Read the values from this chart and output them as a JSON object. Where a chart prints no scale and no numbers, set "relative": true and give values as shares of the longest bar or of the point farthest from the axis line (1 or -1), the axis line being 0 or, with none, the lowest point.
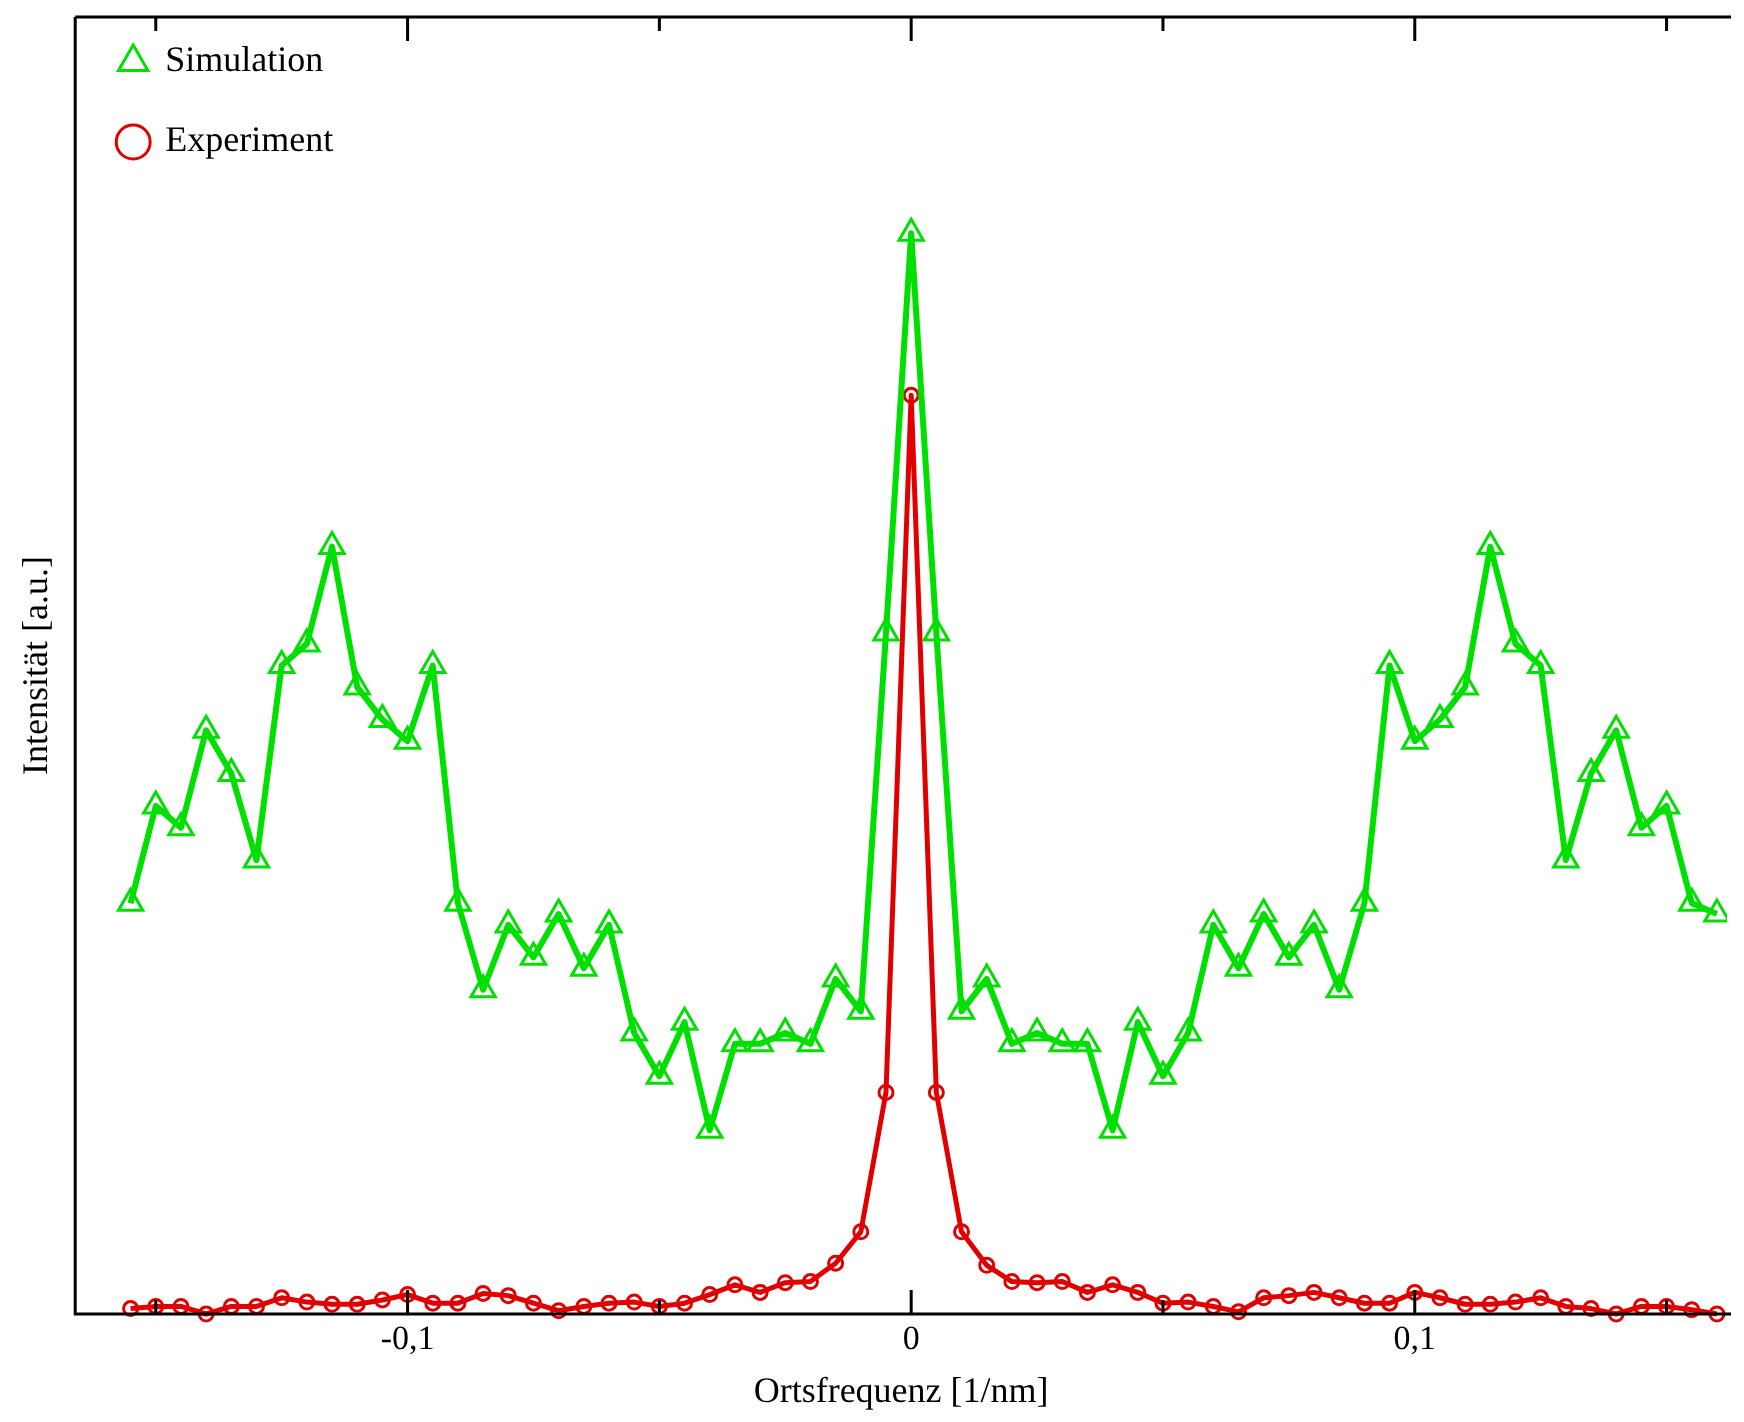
{
  "chart_data": {
    "type": "line",
    "xlabel": "Ortsfrequenz [1/nm]",
    "ylabel": "Intensität [a.u.]",
    "relative": true,
    "x": [
      -0.155,
      -0.15,
      -0.145,
      -0.14,
      -0.135,
      -0.13,
      -0.125,
      -0.12,
      -0.115,
      -0.11,
      -0.105,
      -0.1,
      -0.095,
      -0.09,
      -0.085,
      -0.08,
      -0.075,
      -0.07,
      -0.065,
      -0.06,
      -0.055,
      -0.05,
      -0.045,
      -0.04,
      -0.035,
      -0.03,
      -0.025,
      -0.02,
      -0.015,
      -0.01,
      -0.005,
      0,
      0.005,
      0.01,
      0.015,
      0.02,
      0.025,
      0.03,
      0.035,
      0.04,
      0.045,
      0.05,
      0.055,
      0.06,
      0.065,
      0.07,
      0.075,
      0.08,
      0.085,
      0.09,
      0.095,
      0.1,
      0.105,
      0.11,
      0.115,
      0.12,
      0.125,
      0.13,
      0.135,
      0.14,
      0.145,
      0.15,
      0.155,
      0.16
    ],
    "xlim": [
      -0.166,
      0.162
    ],
    "xticks": [
      {
        "value": -0.15,
        "label": null
      },
      {
        "value": -0.1,
        "label": "-0,1"
      },
      {
        "value": -0.05,
        "label": null
      },
      {
        "value": 0,
        "label": "0"
      },
      {
        "value": 0.05,
        "label": null
      },
      {
        "value": 0.1,
        "label": "0,1"
      },
      {
        "value": 0.15,
        "label": null
      }
    ],
    "legend": "top left",
    "series": [
      {
        "name": "Simulation",
        "color": "#00e000",
        "marker": "triangle",
        "values": [
          0.38,
          0.47,
          0.45,
          0.54,
          0.5,
          0.42,
          0.6,
          0.62,
          0.71,
          0.58,
          0.55,
          0.53,
          0.6,
          0.38,
          0.3,
          0.36,
          0.33,
          0.37,
          0.32,
          0.36,
          0.26,
          0.22,
          0.27,
          0.17,
          0.25,
          0.25,
          0.26,
          0.25,
          0.31,
          0.28,
          0.63,
          1,
          0.63,
          0.28,
          0.31,
          0.25,
          0.26,
          0.25,
          0.25,
          0.17,
          0.27,
          0.22,
          0.26,
          0.36,
          0.32,
          0.37,
          0.33,
          0.36,
          0.3,
          0.38,
          0.6,
          0.53,
          0.55,
          0.58,
          0.71,
          0.62,
          0.6,
          0.42,
          0.5,
          0.54,
          0.45,
          0.47,
          0.38,
          0.37
        ]
      },
      {
        "name": "Experiment",
        "color": "#e00000",
        "marker": "circle",
        "values": [
          0.005,
          0.007,
          0.007,
          0,
          0.007,
          0.007,
          0.015,
          0.011,
          0.009,
          0.009,
          0.013,
          0.018,
          0.01,
          0.01,
          0.019,
          0.017,
          0.01,
          0.003,
          0.007,
          0.01,
          0.011,
          0.007,
          0.01,
          0.018,
          0.027,
          0.02,
          0.029,
          0.03,
          0.047,
          0.076,
          0.205,
          0.85,
          0.205,
          0.076,
          0.045,
          0.03,
          0.029,
          0.03,
          0.02,
          0.027,
          0.02,
          0.01,
          0.011,
          0.007,
          0.002,
          0.015,
          0.017,
          0.02,
          0.015,
          0.01,
          0.01,
          0.02,
          0.015,
          0.009,
          0.009,
          0.011,
          0.015,
          0.007,
          0.005,
          0,
          0.007,
          0.007,
          0.004,
          0
        ]
      }
    ]
  }
}
